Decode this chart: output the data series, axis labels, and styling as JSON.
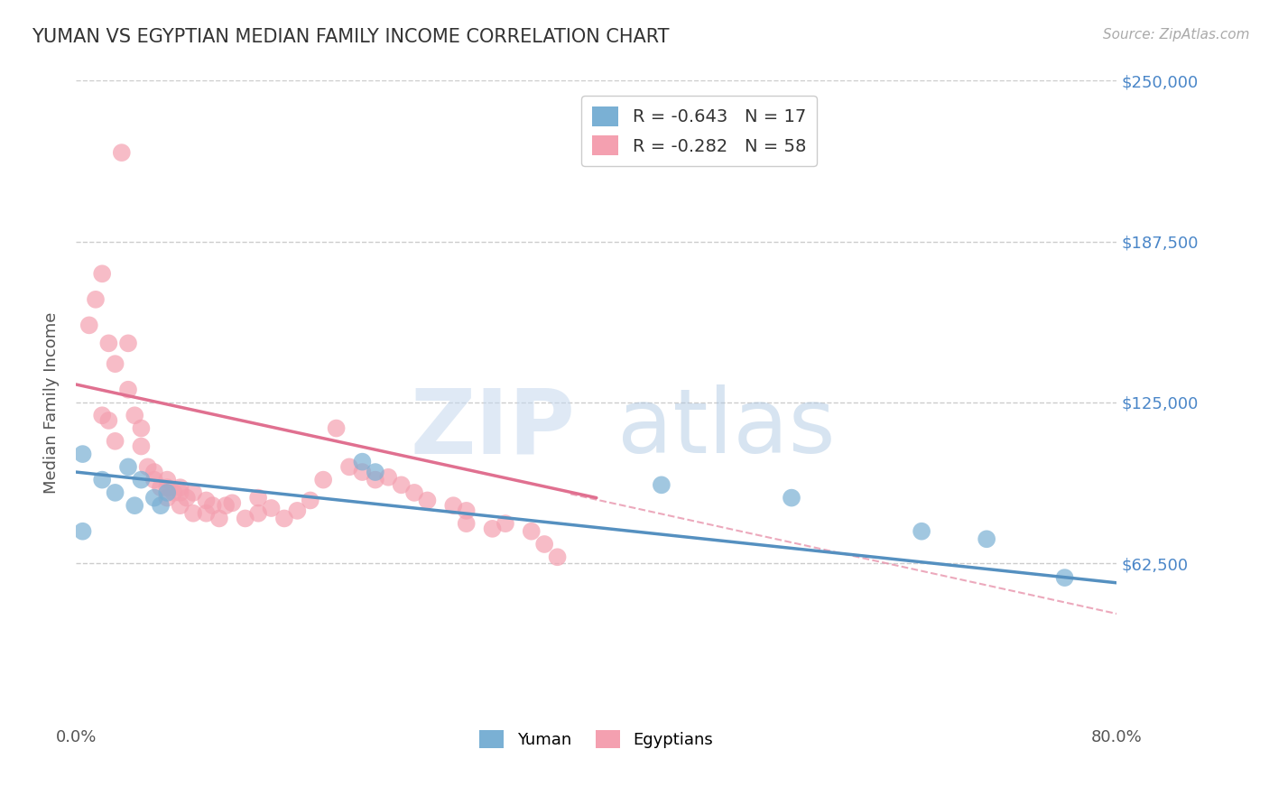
{
  "title": "YUMAN VS EGYPTIAN MEDIAN FAMILY INCOME CORRELATION CHART",
  "source_text": "Source: ZipAtlas.com",
  "ylabel": "Median Family Income",
  "watermark_zip": "ZIP",
  "watermark_atlas": "atlas",
  "xlim": [
    0.0,
    0.8
  ],
  "ylim": [
    0,
    250000
  ],
  "yticks": [
    62500,
    125000,
    187500,
    250000
  ],
  "ytick_labels": [
    "$62,500",
    "$125,000",
    "$187,500",
    "$250,000"
  ],
  "xticks": [
    0.0,
    0.8
  ],
  "xtick_labels": [
    "0.0%",
    "80.0%"
  ],
  "grid_color": "#cccccc",
  "background_color": "#ffffff",
  "yuman_color": "#7ab0d4",
  "egyptian_color": "#f4a0b0",
  "yuman_line_color": "#5590c0",
  "egyptian_line_color": "#e07090",
  "yuman_R": "-0.643",
  "yuman_N": "17",
  "egyptian_R": "-0.282",
  "egyptian_N": "58",
  "label_color": "#4a86c8",
  "title_color": "#333333",
  "yuman_scatter_x": [
    0.005,
    0.02,
    0.03,
    0.04,
    0.045,
    0.05,
    0.06,
    0.065,
    0.07,
    0.22,
    0.23,
    0.45,
    0.55,
    0.65,
    0.7,
    0.76,
    0.005
  ],
  "yuman_scatter_y": [
    105000,
    95000,
    90000,
    100000,
    85000,
    95000,
    88000,
    85000,
    90000,
    102000,
    98000,
    93000,
    88000,
    75000,
    72000,
    57000,
    75000
  ],
  "egyptian_scatter_x": [
    0.01,
    0.015,
    0.02,
    0.025,
    0.03,
    0.035,
    0.04,
    0.04,
    0.045,
    0.05,
    0.05,
    0.055,
    0.06,
    0.06,
    0.065,
    0.07,
    0.07,
    0.075,
    0.08,
    0.08,
    0.085,
    0.09,
    0.09,
    0.1,
    0.1,
    0.105,
    0.11,
    0.115,
    0.12,
    0.13,
    0.14,
    0.14,
    0.15,
    0.16,
    0.17,
    0.18,
    0.19,
    0.2,
    0.21,
    0.22,
    0.23,
    0.24,
    0.25,
    0.26,
    0.27,
    0.29,
    0.3,
    0.3,
    0.32,
    0.33,
    0.35,
    0.36,
    0.37,
    0.02,
    0.025,
    0.03,
    0.07,
    0.08
  ],
  "egyptian_scatter_y": [
    155000,
    165000,
    175000,
    148000,
    140000,
    222000,
    130000,
    148000,
    120000,
    115000,
    108000,
    100000,
    98000,
    95000,
    92000,
    95000,
    88000,
    90000,
    90000,
    85000,
    88000,
    90000,
    82000,
    87000,
    82000,
    85000,
    80000,
    85000,
    86000,
    80000,
    88000,
    82000,
    84000,
    80000,
    83000,
    87000,
    95000,
    115000,
    100000,
    98000,
    95000,
    96000,
    93000,
    90000,
    87000,
    85000,
    78000,
    83000,
    76000,
    78000,
    75000,
    70000,
    65000,
    120000,
    118000,
    110000,
    92000,
    92000
  ],
  "trend_line_yuman_x0": 0.0,
  "trend_line_yuman_x1": 0.8,
  "trend_line_yuman_y0": 98000,
  "trend_line_yuman_y1": 55000,
  "trend_line_egyptian_solid_x0": 0.0,
  "trend_line_egyptian_solid_x1": 0.4,
  "trend_line_egyptian_solid_y0": 132000,
  "trend_line_egyptian_solid_y1": 88000,
  "trend_line_egyptian_dashed_x0": 0.38,
  "trend_line_egyptian_dashed_x1": 0.8,
  "trend_line_egyptian_dashed_y0": 89500,
  "trend_line_egyptian_dashed_y1": 43000
}
